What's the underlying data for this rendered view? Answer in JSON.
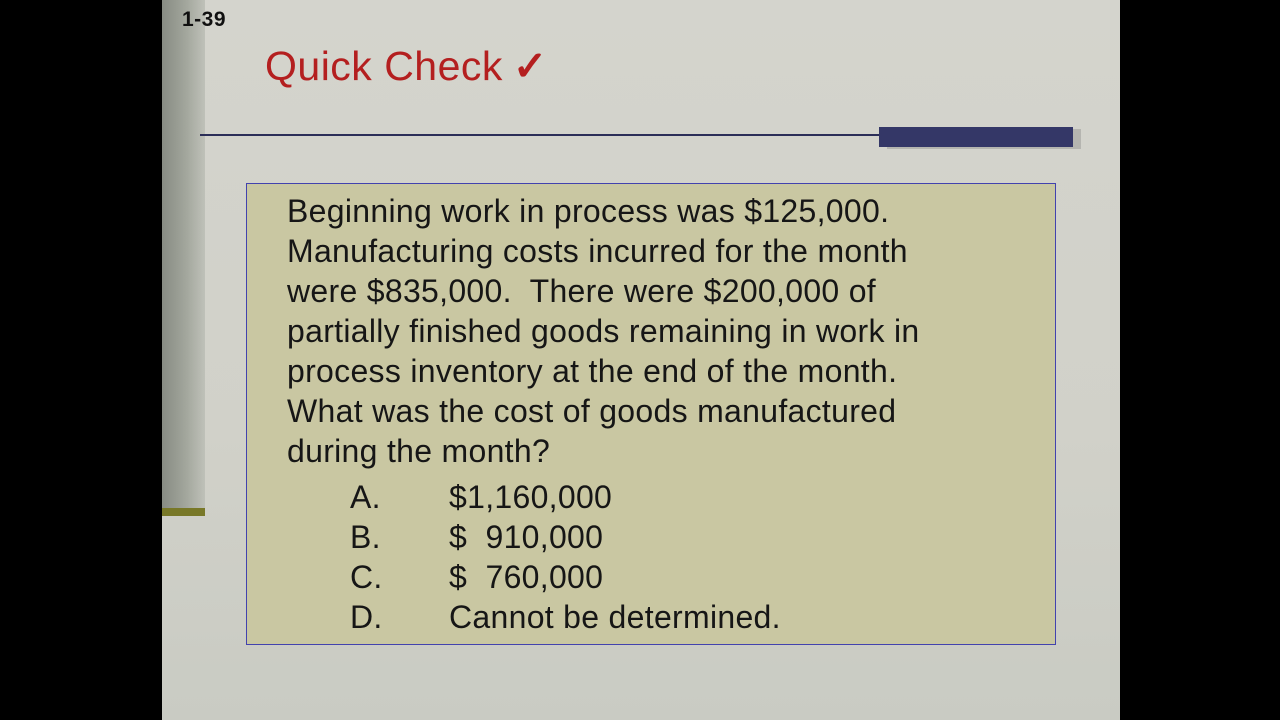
{
  "slide": {
    "number": "1-39",
    "title": "Quick Check",
    "checkmark": "✓"
  },
  "question": {
    "lines": [
      "Beginning work in process was $125,000.",
      "Manufacturing costs incurred for the month",
      "were $835,000.  There were $200,000 of",
      "partially finished goods remaining in work in",
      "process inventory at the end of the month.",
      "What was the cost of goods manufactured",
      "during the month?"
    ],
    "options": [
      {
        "letter": "A.",
        "value": "$1,160,000"
      },
      {
        "letter": "B.",
        "value": "$  910,000"
      },
      {
        "letter": "C.",
        "value": "$  760,000"
      },
      {
        "letter": "D.",
        "value": "Cannot be determined."
      }
    ]
  },
  "colors": {
    "background_letterbox": "#000000",
    "slide_background": "#d1d1c9",
    "title_red": "#b41f1f",
    "accent_navy": "#343767",
    "rule_navy": "#2b2e58",
    "box_background": "#c9c7a2",
    "box_border": "#4242ae",
    "side_bar_gray": "#a2a69c",
    "olive_accent": "#787828",
    "text_color": "#161616"
  }
}
